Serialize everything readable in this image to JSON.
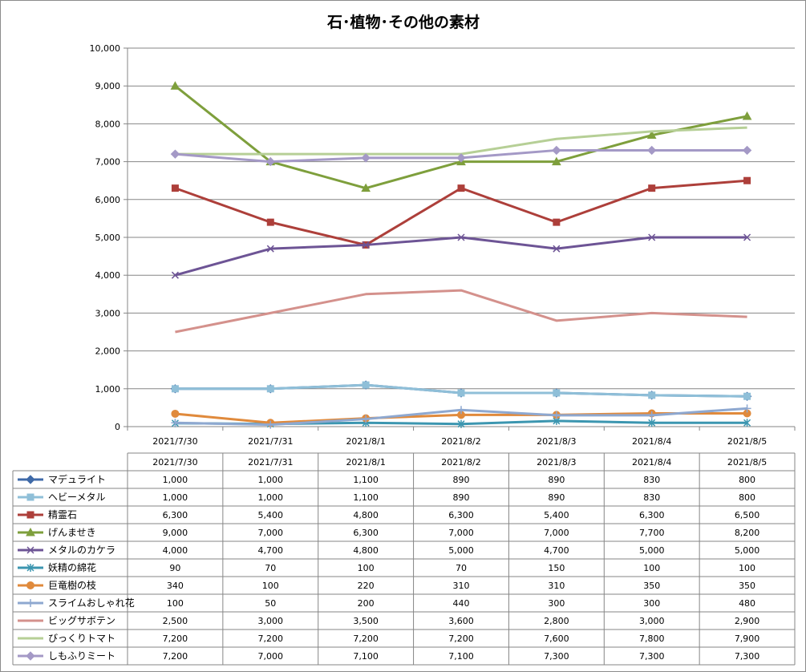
{
  "chart_data": {
    "type": "line",
    "title": "石･植物･その他の素材",
    "xlabel": "",
    "ylabel": "",
    "ylim": [
      0,
      10000
    ],
    "yticks": [
      0,
      1000,
      2000,
      3000,
      4000,
      5000,
      6000,
      7000,
      8000,
      9000,
      10000
    ],
    "ytick_labels": [
      "0",
      "1,000",
      "2,000",
      "3,000",
      "4,000",
      "5,000",
      "6,000",
      "7,000",
      "8,000",
      "9,000",
      "10,000"
    ],
    "grid": true,
    "legend": "data-table-bottom",
    "categories": [
      "2021/7/30",
      "2021/7/31",
      "2021/8/1",
      "2021/8/2",
      "2021/8/3",
      "2021/8/4",
      "2021/8/5"
    ],
    "series": [
      {
        "name": "マデュライト",
        "color": "#3f6aa8",
        "marker": "diamond",
        "values": [
          1000,
          1000,
          1100,
          890,
          890,
          830,
          800
        ],
        "labels": [
          "1,000",
          "1,000",
          "1,100",
          "890",
          "890",
          "830",
          "800"
        ]
      },
      {
        "name": "ヘビーメタル",
        "color": "#8fbfd8",
        "marker": "square",
        "values": [
          1000,
          1000,
          1100,
          890,
          890,
          830,
          800
        ],
        "labels": [
          "1,000",
          "1,000",
          "1,100",
          "890",
          "890",
          "830",
          "800"
        ]
      },
      {
        "name": "精霊石",
        "color": "#ad3f3a",
        "marker": "square",
        "values": [
          6300,
          5400,
          4800,
          6300,
          5400,
          6300,
          6500
        ],
        "labels": [
          "6,300",
          "5,400",
          "4,800",
          "6,300",
          "5,400",
          "6,300",
          "6,500"
        ]
      },
      {
        "name": "げんませき",
        "color": "#7e9f3c",
        "marker": "triangle",
        "values": [
          9000,
          7000,
          6300,
          7000,
          7000,
          7700,
          8200
        ],
        "labels": [
          "9,000",
          "7,000",
          "6,300",
          "7,000",
          "7,000",
          "7,700",
          "8,200"
        ]
      },
      {
        "name": "メタルのカケラ",
        "color": "#6d5495",
        "marker": "x",
        "values": [
          4000,
          4700,
          4800,
          5000,
          4700,
          5000,
          5000
        ],
        "labels": [
          "4,000",
          "4,700",
          "4,800",
          "5,000",
          "4,700",
          "5,000",
          "5,000"
        ]
      },
      {
        "name": "妖精の綿花",
        "color": "#3c96b0",
        "marker": "star",
        "values": [
          90,
          70,
          100,
          70,
          150,
          100,
          100
        ],
        "labels": [
          "90",
          "70",
          "100",
          "70",
          "150",
          "100",
          "100"
        ]
      },
      {
        "name": "巨竜樹の枝",
        "color": "#e08a3c",
        "marker": "circle",
        "values": [
          340,
          100,
          220,
          310,
          310,
          350,
          350
        ],
        "labels": [
          "340",
          "100",
          "220",
          "310",
          "310",
          "350",
          "350"
        ]
      },
      {
        "name": "スライムおしゃれ花",
        "color": "#8ea8d0",
        "marker": "plus",
        "values": [
          100,
          50,
          200,
          440,
          300,
          300,
          480
        ],
        "labels": [
          "100",
          "50",
          "200",
          "440",
          "300",
          "300",
          "480"
        ]
      },
      {
        "name": "ビッグサボテン",
        "color": "#d4918c",
        "marker": "none",
        "values": [
          2500,
          3000,
          3500,
          3600,
          2800,
          3000,
          2900
        ],
        "labels": [
          "2,500",
          "3,000",
          "3,500",
          "3,600",
          "2,800",
          "3,000",
          "2,900"
        ]
      },
      {
        "name": "びっくりトマト",
        "color": "#b6cf96",
        "marker": "none",
        "values": [
          7200,
          7200,
          7200,
          7200,
          7600,
          7800,
          7900
        ],
        "labels": [
          "7,200",
          "7,200",
          "7,200",
          "7,200",
          "7,600",
          "7,800",
          "7,900"
        ]
      },
      {
        "name": "しもふりミート",
        "color": "#a499c6",
        "marker": "diamond",
        "values": [
          7200,
          7000,
          7100,
          7100,
          7300,
          7300,
          7300
        ],
        "labels": [
          "7,200",
          "7,000",
          "7,100",
          "7,100",
          "7,300",
          "7,300",
          "7,300"
        ]
      }
    ]
  }
}
